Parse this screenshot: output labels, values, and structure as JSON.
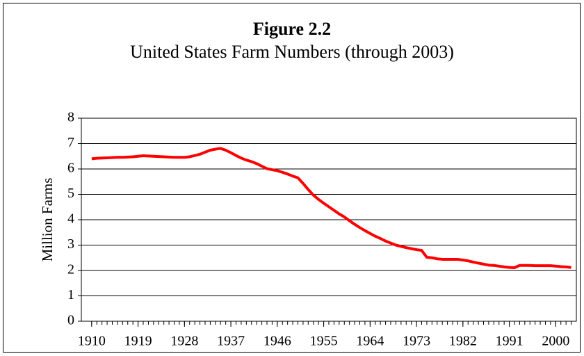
{
  "chart_data": {
    "type": "line",
    "title": "Figure 2.2",
    "subtitle": "United States Farm Numbers (through 2003)",
    "y_label": "Million Farms",
    "x": [
      1910,
      1911,
      1912,
      1913,
      1914,
      1915,
      1916,
      1917,
      1918,
      1919,
      1920,
      1921,
      1922,
      1923,
      1924,
      1925,
      1926,
      1927,
      1928,
      1929,
      1930,
      1931,
      1932,
      1933,
      1934,
      1935,
      1936,
      1937,
      1938,
      1939,
      1940,
      1941,
      1942,
      1943,
      1944,
      1945,
      1946,
      1947,
      1948,
      1949,
      1950,
      1951,
      1952,
      1953,
      1954,
      1955,
      1956,
      1957,
      1958,
      1959,
      1960,
      1961,
      1962,
      1963,
      1964,
      1965,
      1966,
      1967,
      1968,
      1969,
      1970,
      1971,
      1972,
      1973,
      1974,
      1975,
      1976,
      1977,
      1978,
      1979,
      1980,
      1981,
      1982,
      1983,
      1984,
      1985,
      1986,
      1987,
      1988,
      1989,
      1990,
      1991,
      1992,
      1993,
      1994,
      1995,
      1996,
      1997,
      1998,
      1999,
      2000,
      2001,
      2002,
      2003
    ],
    "series": [
      {
        "color": "#ff0000",
        "values": [
          6.4,
          6.42,
          6.43,
          6.44,
          6.45,
          6.46,
          6.46,
          6.47,
          6.48,
          6.5,
          6.52,
          6.51,
          6.5,
          6.49,
          6.48,
          6.47,
          6.46,
          6.46,
          6.46,
          6.48,
          6.53,
          6.58,
          6.66,
          6.74,
          6.78,
          6.81,
          6.74,
          6.64,
          6.53,
          6.43,
          6.35,
          6.29,
          6.21,
          6.11,
          6.01,
          5.97,
          5.93,
          5.87,
          5.8,
          5.72,
          5.65,
          5.43,
          5.19,
          4.97,
          4.8,
          4.65,
          4.51,
          4.37,
          4.23,
          4.11,
          3.96,
          3.82,
          3.69,
          3.57,
          3.46,
          3.35,
          3.26,
          3.16,
          3.08,
          3.0,
          2.95,
          2.9,
          2.86,
          2.82,
          2.79,
          2.52,
          2.5,
          2.46,
          2.44,
          2.44,
          2.44,
          2.44,
          2.41,
          2.38,
          2.33,
          2.29,
          2.25,
          2.21,
          2.2,
          2.17,
          2.14,
          2.12,
          2.11,
          2.2,
          2.2,
          2.2,
          2.19,
          2.19,
          2.19,
          2.19,
          2.17,
          2.15,
          2.14,
          2.12
        ]
      }
    ],
    "xlim": [
      1908,
      2004
    ],
    "xticks": [
      1910,
      1919,
      1928,
      1937,
      1946,
      1955,
      1964,
      1973,
      1982,
      1991,
      2000
    ],
    "ylim": [
      0,
      8
    ],
    "yticks": [
      0,
      1,
      2,
      3,
      4,
      5,
      6,
      7,
      8
    ],
    "grid": true
  }
}
